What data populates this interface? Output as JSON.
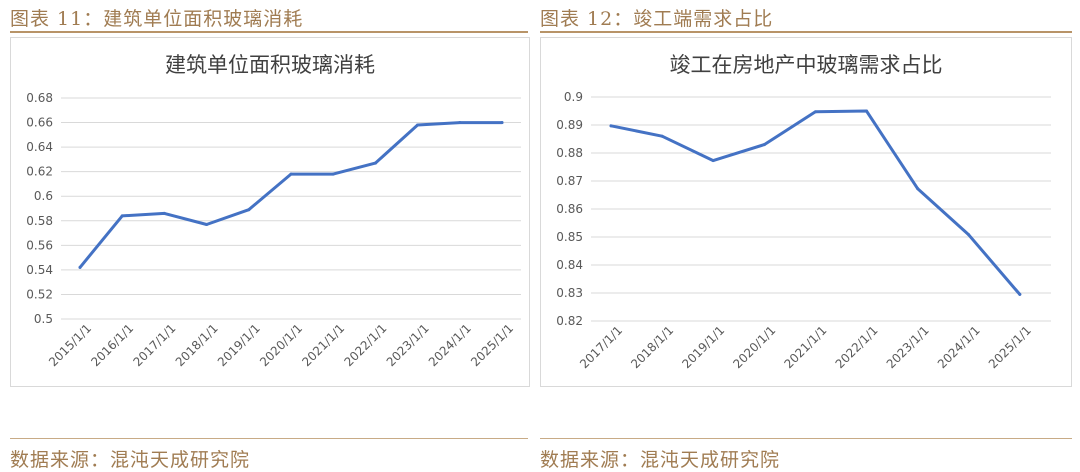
{
  "figures": [
    {
      "caption": "图表 11：建筑单位面积玻璃消耗",
      "source": "数据来源：混沌天成研究院"
    },
    {
      "caption": "图表 12：竣工端需求占比",
      "source": "数据来源：混沌天成研究院"
    }
  ],
  "chart_data": [
    {
      "type": "line",
      "title": "建筑单位面积玻璃消耗",
      "xlabel": "",
      "ylabel": "",
      "categories": [
        "2015/1/1",
        "2016/1/1",
        "2017/1/1",
        "2018/1/1",
        "2019/1/1",
        "2020/1/1",
        "2021/1/1",
        "2022/1/1",
        "2023/1/1",
        "2024/1/1",
        "2025/1/1"
      ],
      "series": [
        {
          "values": [
            0.542,
            0.584,
            0.586,
            0.577,
            0.589,
            0.618,
            0.618,
            0.627,
            0.658,
            0.66,
            0.66
          ]
        }
      ],
      "ylim": [
        0.5,
        0.68
      ],
      "yticks": [
        "0.5",
        "0.52",
        "0.54",
        "0.56",
        "0.58",
        "0.6",
        "0.62",
        "0.64",
        "0.66",
        "0.68"
      ],
      "grid": true,
      "legend": "none",
      "line_color": "#4472c4"
    },
    {
      "type": "line",
      "title": "竣工在房地产中玻璃需求占比",
      "xlabel": "",
      "ylabel": "",
      "categories": [
        "2017/1/1",
        "2018/1/1",
        "2019/1/1",
        "2020/1/1",
        "2021/1/1",
        "2022/1/1",
        "2023/1/1",
        "2024/1/1",
        "2025/1/1"
      ],
      "series": [
        {
          "values": [
            0.8897,
            0.886,
            0.8773,
            0.883,
            0.8947,
            0.895,
            0.8673,
            0.8508,
            0.8295
          ]
        }
      ],
      "ylim": [
        0.82,
        0.9
      ],
      "yticks": [
        "0.82",
        "0.83",
        "0.84",
        "0.85",
        "0.86",
        "0.87",
        "0.88",
        "0.89",
        "0.9"
      ],
      "grid": true,
      "legend": "none",
      "line_color": "#4472c4"
    }
  ]
}
